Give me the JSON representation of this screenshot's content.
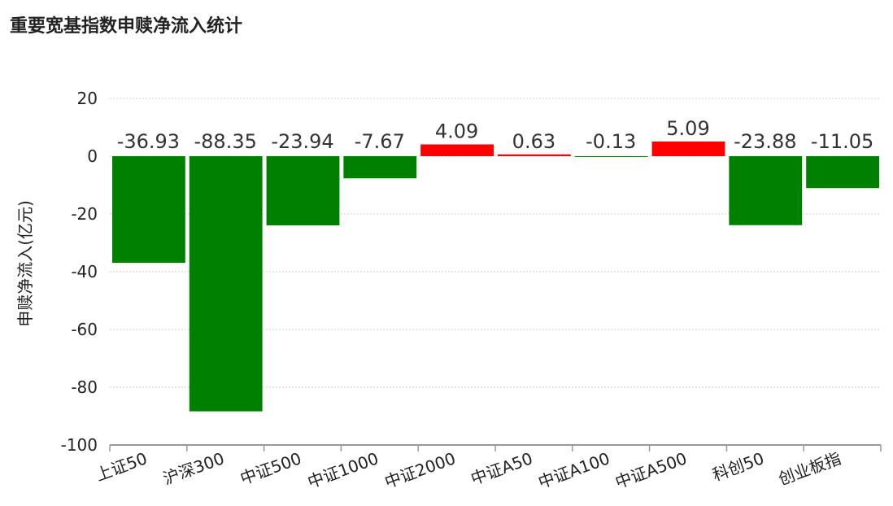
{
  "chart_data": {
    "type": "bar",
    "title": "重要宽基指数申赎净流入统计",
    "xlabel": "",
    "ylabel": "申赎净流入(亿元)",
    "ylim": [
      -100,
      20
    ],
    "yticks": [
      20,
      0,
      -20,
      -40,
      -60,
      -80,
      -100
    ],
    "grid": true,
    "categories": [
      "上证50",
      "沪深300",
      "中证500",
      "中证1000",
      "中证2000",
      "中证A50",
      "中证A100",
      "中证A500",
      "科创50",
      "创业板指"
    ],
    "values": [
      -36.93,
      -88.35,
      -23.94,
      -7.67,
      4.09,
      0.63,
      -0.13,
      5.09,
      -23.88,
      -11.05
    ],
    "value_labels": [
      "-36.93",
      "-88.35",
      "-23.94",
      "-7.67",
      "4.09",
      "0.63",
      "-0.13",
      "5.09",
      "-23.88",
      "-11.05"
    ],
    "colors": {
      "positive": "#ff0000",
      "negative": "#008000",
      "axis": "#999999",
      "grid": "#cccccc"
    }
  }
}
